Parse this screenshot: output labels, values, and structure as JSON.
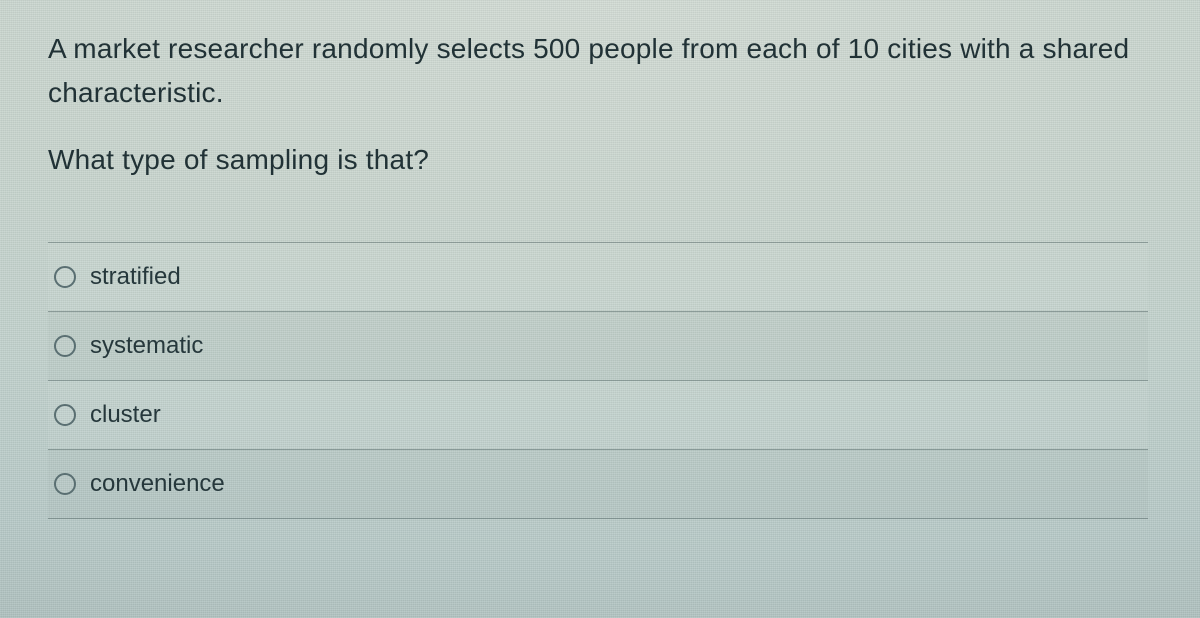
{
  "prompt": {
    "line1": "A market researcher randomly selects 500 people from each of 10 cities with a shared",
    "line2": "characteristic."
  },
  "question": "What type of sampling is that?",
  "options": [
    {
      "label": "stratified"
    },
    {
      "label": "systematic"
    },
    {
      "label": "cluster"
    },
    {
      "label": "convenience"
    }
  ]
}
